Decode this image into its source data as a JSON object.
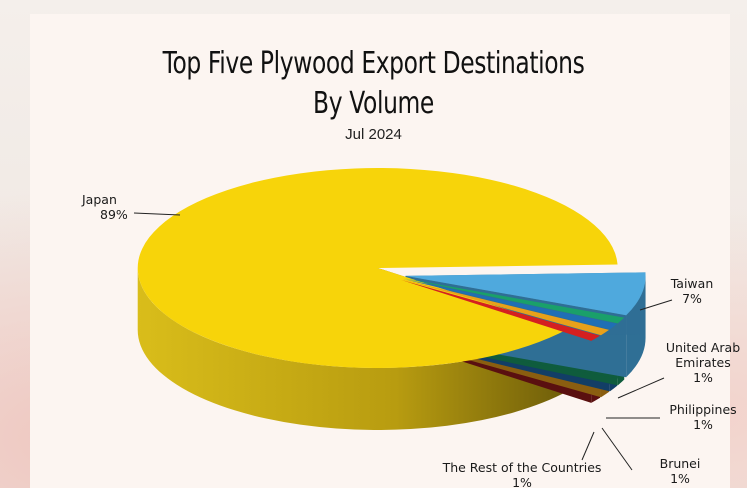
{
  "chart_data": {
    "type": "pie",
    "title": "Top Five Plywood Export Destinations",
    "title_line2": "By Volume",
    "subtitle": "Jul 2024",
    "slices": [
      {
        "name": "Japan",
        "value": 89,
        "label": "89%",
        "color": "#f7d40a",
        "side": "#c9ad0c"
      },
      {
        "name": "Taiwan",
        "value": 7,
        "label": "7%",
        "color": "#4fa9dd",
        "side": "#2f6f95"
      },
      {
        "name": "United Arab Emirates",
        "value": 1,
        "label": "1%",
        "color": "#1aa06a",
        "side": "#0f5c3d"
      },
      {
        "name": "Philippines",
        "value": 1,
        "label": "1%",
        "color": "#1f6fb5",
        "side": "#123e66"
      },
      {
        "name": "Brunei",
        "value": 1,
        "label": "1%",
        "color": "#e8a11a",
        "side": "#8a5e10"
      },
      {
        "name": "The Rest of the Countries",
        "value": 1,
        "label": "1%",
        "color": "#d42020",
        "side": "#5a1010"
      }
    ],
    "legend": "none",
    "style": "3d-exploded"
  }
}
